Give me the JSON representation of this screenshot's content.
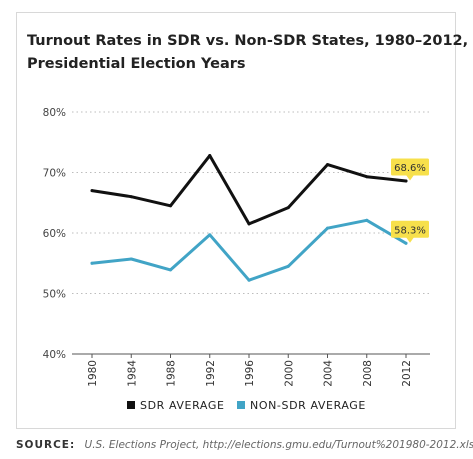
{
  "chart_data": {
    "type": "line",
    "title_lines": [
      "Turnout Rates in SDR vs. Non-SDR States, 1980–2012,",
      "Presidential Election Years"
    ],
    "categories": [
      "1980",
      "1984",
      "1988",
      "1992",
      "1996",
      "2000",
      "2004",
      "2008",
      "2012"
    ],
    "series": [
      {
        "name": "SDR AVERAGE",
        "color": "#111111",
        "values": [
          67.0,
          66.0,
          64.5,
          72.8,
          61.5,
          64.2,
          71.3,
          69.3,
          68.6
        ]
      },
      {
        "name": "NON-SDR AVERAGE",
        "color": "#41a4c6",
        "values": [
          55.0,
          55.7,
          53.9,
          59.7,
          52.2,
          54.5,
          60.8,
          62.1,
          58.3
        ]
      }
    ],
    "callouts": [
      {
        "series": 0,
        "index": 8,
        "label": "68.6%"
      },
      {
        "series": 1,
        "index": 8,
        "label": "58.3%"
      }
    ],
    "callout_color": "#f7e04b",
    "y_ticks": [
      {
        "value": 40,
        "label": "40%"
      },
      {
        "value": 50,
        "label": "50%"
      },
      {
        "value": 60,
        "label": "60%"
      },
      {
        "value": 70,
        "label": "70%"
      },
      {
        "value": 80,
        "label": "80%"
      }
    ],
    "ylim": [
      40,
      80
    ],
    "grid": "dotted horizontal",
    "legend_position": "bottom"
  },
  "source": {
    "label": "SOURCE:",
    "text": "U.S. Elections Project, http://elections.gmu.edu/Turnout%201980-2012.xls"
  }
}
